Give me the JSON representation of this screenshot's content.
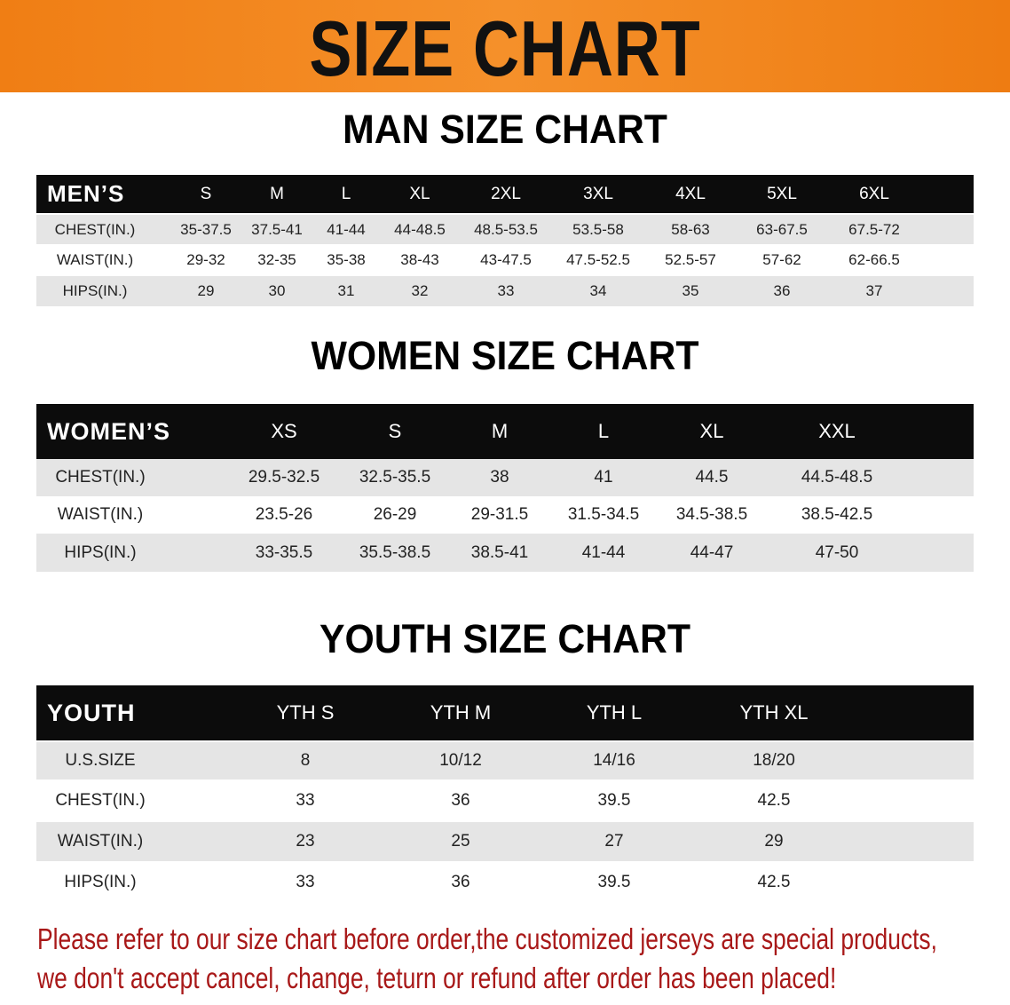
{
  "banner": {
    "title": "SIZE CHART",
    "color": "#f08a1c"
  },
  "men": {
    "title": "MAN SIZE CHART",
    "header": "MEN’S",
    "sizes": [
      "S",
      "M",
      "L",
      "XL",
      "2XL",
      "3XL",
      "4XL",
      "5XL",
      "6XL"
    ],
    "rows": [
      {
        "label": "CHEST(IN.)",
        "values": [
          "35-37.5",
          "37.5-41",
          "41-44",
          "44-48.5",
          "48.5-53.5",
          "53.5-58",
          "58-63",
          "63-67.5",
          "67.5-72"
        ]
      },
      {
        "label": "WAIST(IN.)",
        "values": [
          "29-32",
          "32-35",
          "35-38",
          "38-43",
          "43-47.5",
          "47.5-52.5",
          "52.5-57",
          "57-62",
          "62-66.5"
        ]
      },
      {
        "label": "HIPS(IN.)",
        "values": [
          "29",
          "30",
          "31",
          "32",
          "33",
          "34",
          "35",
          "36",
          "37"
        ]
      }
    ]
  },
  "women": {
    "title": "WOMEN SIZE CHART",
    "header": "WOMEN’S",
    "sizes": [
      "XS",
      "S",
      "M",
      "L",
      "XL",
      "XXL"
    ],
    "rows": [
      {
        "label": "CHEST(IN.)",
        "values": [
          "29.5-32.5",
          "32.5-35.5",
          "38",
          "41",
          "44.5",
          "44.5-48.5"
        ]
      },
      {
        "label": "WAIST(IN.)",
        "values": [
          "23.5-26",
          "26-29",
          "29-31.5",
          "31.5-34.5",
          "34.5-38.5",
          "38.5-42.5"
        ]
      },
      {
        "label": "HIPS(IN.)",
        "values": [
          "33-35.5",
          "35.5-38.5",
          "38.5-41",
          "41-44",
          "44-47",
          "47-50"
        ]
      }
    ]
  },
  "youth": {
    "title": "YOUTH SIZE CHART",
    "header": "YOUTH",
    "sizes": [
      "YTH S",
      "YTH M",
      "YTH L",
      "YTH XL"
    ],
    "rows": [
      {
        "label": "U.S.SIZE",
        "values": [
          "8",
          "10/12",
          "14/16",
          "18/20"
        ]
      },
      {
        "label": "CHEST(IN.)",
        "values": [
          "33",
          "36",
          "39.5",
          "42.5"
        ]
      },
      {
        "label": "WAIST(IN.)",
        "values": [
          "23",
          "25",
          "27",
          "29"
        ]
      },
      {
        "label": "HIPS(IN.)",
        "values": [
          "33",
          "36",
          "39.5",
          "42.5"
        ]
      }
    ]
  },
  "note": {
    "line1": "Please refer to our size chart before order,the customized jerseys are special products,",
    "line2": "we don't accept cancel, change, teturn or refund after order has been placed!",
    "color": "#a81818"
  }
}
